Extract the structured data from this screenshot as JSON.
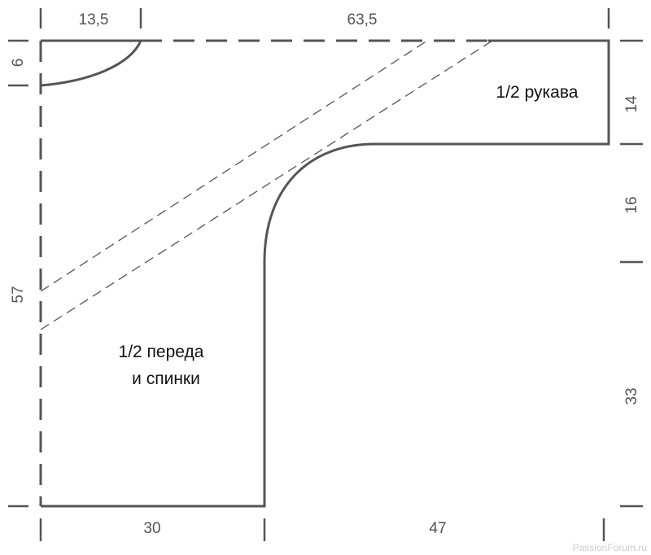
{
  "dimensions": {
    "top": [
      "13,5",
      "63,5"
    ],
    "left": [
      "6",
      "57"
    ],
    "bottom": [
      "30",
      "47"
    ],
    "right": [
      "14",
      "16",
      "33"
    ]
  },
  "labels": {
    "sleeve": "1/2 рукава",
    "body_line1": "1/2 переда",
    "body_line2": "и спинки"
  },
  "watermark": "PassionForum.ru",
  "colors": {
    "outline": "#555555",
    "text": "#111111"
  }
}
